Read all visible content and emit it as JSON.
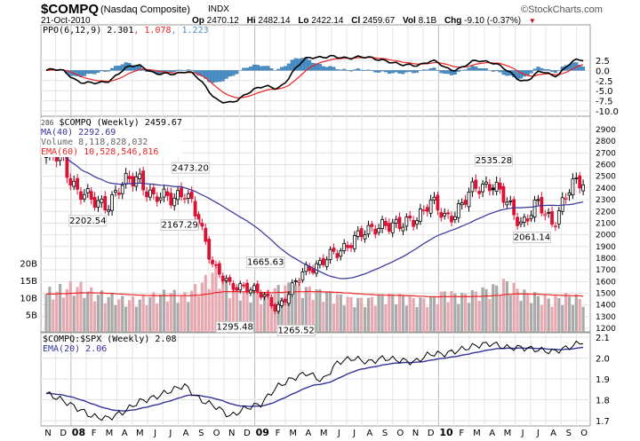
{
  "header": {
    "symbol": "$COMPQ",
    "name": "(Nasdaq Composite)",
    "exchange": "INDX",
    "date": "21-Oct-2010",
    "brand": "©StockCharts.com",
    "quote": [
      {
        "k": "Op",
        "v": "2470.12"
      },
      {
        "k": "Hi",
        "v": "2482.14"
      },
      {
        "k": "Lo",
        "v": "2422.14"
      },
      {
        "k": "Cl",
        "v": "2459.67"
      },
      {
        "k": "Vol",
        "v": "8.1B"
      },
      {
        "k": "Chg",
        "v": "-9.10 (-0.37%)"
      }
    ]
  },
  "ppo_legend": {
    "label": "PPO(6,12,9) 2.301",
    "signal": ", 1.078",
    "hist": ", 1.223"
  },
  "main_legend": {
    "price": "$COMPQ (Weekly) 2459.67",
    "ma": "MA(40) 2292.69",
    "volume": "Volume 8,118,828,032",
    "ema": "EMA(60) 10,528,546,816",
    "clipped": "286"
  },
  "ratio_legend": {
    "price": "$COMPQ:$SPX (Weekly) 2.08",
    "ema": "EMA(20) 2.06"
  },
  "colors": {
    "up": "#000000",
    "down": "#dd1133",
    "ma": "#333399",
    "ema": "#ee2222",
    "hist": "#4a90c8",
    "volUp": "#aaaaaa",
    "volDown": "#e8a8b0"
  },
  "chart_data": {
    "type": "candlestick",
    "months": [
      "N",
      "D",
      "08",
      "F",
      "M",
      "A",
      "M",
      "J",
      "J",
      "A",
      "S",
      "O",
      "N",
      "D",
      "09",
      "F",
      "M",
      "A",
      "M",
      "J",
      "J",
      "A",
      "S",
      "O",
      "N",
      "D",
      "10",
      "F",
      "M",
      "A",
      "M",
      "J",
      "J",
      "A",
      "S",
      "O"
    ],
    "monthly_close": [
      2660,
      2650,
      2390,
      2270,
      2280,
      2410,
      2520,
      2290,
      2330,
      2370,
      2090,
      1720,
      1540,
      1580,
      1480,
      1380,
      1530,
      1720,
      1770,
      1840,
      1980,
      2010,
      2120,
      2050,
      2150,
      2270,
      2150,
      2240,
      2400,
      2460,
      2260,
      2110,
      2250,
      2110,
      2370,
      2460
    ],
    "monthly_volume_b": [
      11,
      12,
      13,
      11,
      10,
      9,
      9,
      10,
      11,
      10,
      13,
      17,
      12,
      11,
      10,
      12,
      13,
      12,
      11,
      10,
      9,
      9,
      10,
      10,
      9,
      9,
      11,
      10,
      11,
      12,
      14,
      11,
      10,
      9,
      10,
      9
    ],
    "ratio_monthly": [
      1.83,
      1.8,
      1.76,
      1.72,
      1.71,
      1.74,
      1.79,
      1.81,
      1.84,
      1.87,
      1.8,
      1.77,
      1.72,
      1.76,
      1.78,
      1.86,
      1.9,
      1.93,
      1.89,
      1.98,
      2.0,
      1.98,
      2.0,
      1.99,
      1.98,
      2.02,
      2.02,
      2.04,
      2.06,
      2.07,
      2.05,
      2.05,
      2.04,
      2.03,
      2.05,
      2.08
    ],
    "price_ticks": [
      2900,
      2800,
      2700,
      2600,
      2500,
      2400,
      2300,
      2200,
      2100,
      2000,
      1900,
      1800,
      1700,
      1600,
      1500,
      1400,
      1300,
      1200
    ],
    "volume_ticks": [
      "20B",
      "15B",
      "10B",
      "5B"
    ],
    "volume_tick_values": [
      20,
      15,
      10,
      5
    ],
    "ppo_ticks": [
      "2.5",
      "0.0",
      "-2.5",
      "-5.0",
      "-7.5",
      "-10.0"
    ],
    "ppo_tick_values": [
      2.5,
      0,
      -2.5,
      -5,
      -7.5,
      -10
    ],
    "ratio_ticks": [
      "2.1",
      "2.0",
      "1.9",
      "1.8",
      "1.7"
    ],
    "ratio_tick_values": [
      2.1,
      2.0,
      1.9,
      1.8,
      1.7
    ],
    "annotations": [
      {
        "text": "2202.54",
        "month": 2.6,
        "value": 2202.54,
        "pos": "below"
      },
      {
        "text": "2167.29",
        "month": 8.6,
        "value": 2167.29,
        "pos": "below"
      },
      {
        "text": "2473.20",
        "month": 9.3,
        "value": 2473.2,
        "pos": "above"
      },
      {
        "text": "1665.63",
        "month": 14.2,
        "value": 1665.63,
        "pos": "above"
      },
      {
        "text": "1295.48",
        "month": 12.2,
        "value": 1295.48,
        "pos": "below"
      },
      {
        "text": "1265.52",
        "month": 16.2,
        "value": 1265.52,
        "pos": "below"
      },
      {
        "text": "2535.28",
        "month": 29.1,
        "value": 2535.28,
        "pos": "above"
      },
      {
        "text": "2061.14",
        "month": 31.6,
        "value": 2061.14,
        "pos": "below"
      }
    ]
  }
}
